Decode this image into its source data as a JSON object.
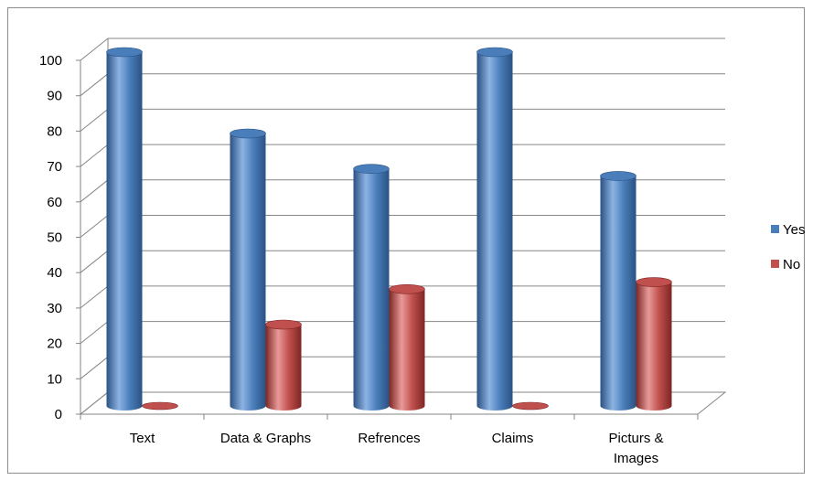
{
  "chart_data": {
    "type": "bar",
    "categories": [
      "Text",
      "Data & Graphs",
      "Refrences",
      "Claims",
      "Picturs & Images"
    ],
    "category_lines": [
      [
        "Text"
      ],
      [
        "Data & Graphs"
      ],
      [
        "Refrences"
      ],
      [
        "Claims"
      ],
      [
        "Picturs &",
        "Images"
      ]
    ],
    "series": [
      {
        "name": "Yes",
        "values": [
          100,
          77,
          67,
          100,
          65
        ],
        "color": "#4a7ebb",
        "color_dark": "#2b5283",
        "color_light": "#8cb3e3"
      },
      {
        "name": "No",
        "values": [
          0,
          23,
          33,
          0,
          35
        ],
        "color": "#c0504d",
        "color_dark": "#7d2624",
        "color_light": "#e89a98"
      }
    ],
    "ylim": [
      0,
      100
    ],
    "yticks": [
      0,
      10,
      20,
      30,
      40,
      50,
      60,
      70,
      80,
      90,
      100
    ],
    "title": "",
    "xlabel": "",
    "ylabel": "",
    "grid": true,
    "legend_position": "right",
    "style": "3d-cylinder"
  }
}
